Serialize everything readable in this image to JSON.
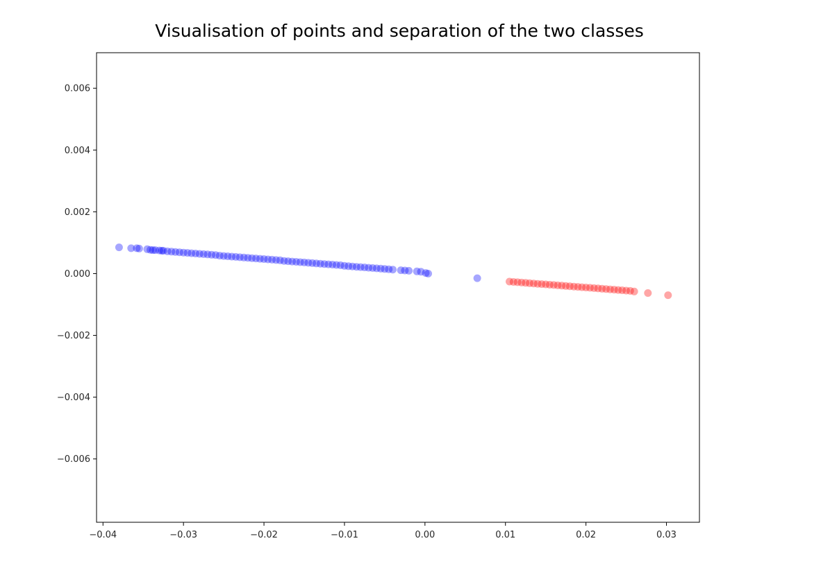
{
  "chart_data": {
    "type": "scatter",
    "title": "Visualisation of points and separation of the two classes",
    "xlabel": "",
    "ylabel": "",
    "xlim": [
      -0.0408,
      0.0341
    ],
    "ylim": [
      -0.00805,
      0.00715
    ],
    "grid": false,
    "x_ticks": [
      -0.04,
      -0.03,
      -0.02,
      -0.01,
      0.0,
      0.01,
      0.02,
      0.03
    ],
    "x_tick_labels": [
      "−0.04",
      "−0.03",
      "−0.02",
      "−0.01",
      "0.00",
      "0.01",
      "0.02",
      "0.03"
    ],
    "y_ticks": [
      0.006,
      0.004,
      0.002,
      0.0,
      -0.002,
      -0.004,
      -0.006
    ],
    "y_tick_labels": [
      "0.006",
      "0.004",
      "0.002",
      "0.000",
      "−0.002",
      "−0.004",
      "−0.006"
    ],
    "series": [
      {
        "color": "#0000ff",
        "opacity": 0.35,
        "x": [
          -0.038,
          -0.0365,
          -0.0358,
          -0.0355,
          -0.0345,
          -0.0341,
          -0.0338,
          -0.0335,
          -0.033,
          -0.0327,
          -0.0325,
          -0.032,
          -0.0315,
          -0.031,
          -0.0305,
          -0.03,
          -0.0295,
          -0.029,
          -0.0285,
          -0.028,
          -0.0275,
          -0.027,
          -0.0265,
          -0.026,
          -0.0255,
          -0.025,
          -0.0245,
          -0.024,
          -0.0235,
          -0.023,
          -0.0225,
          -0.022,
          -0.0215,
          -0.021,
          -0.0205,
          -0.02,
          -0.0195,
          -0.019,
          -0.0185,
          -0.018,
          -0.0175,
          -0.017,
          -0.0165,
          -0.016,
          -0.0155,
          -0.015,
          -0.0145,
          -0.014,
          -0.0135,
          -0.013,
          -0.0125,
          -0.012,
          -0.0115,
          -0.011,
          -0.0105,
          -0.01,
          -0.0095,
          -0.009,
          -0.0085,
          -0.008,
          -0.0075,
          -0.007,
          -0.0065,
          -0.006,
          -0.0055,
          -0.005,
          -0.0045,
          -0.004,
          -0.003,
          -0.0025,
          -0.002,
          -0.001,
          -0.0005,
          0.0001,
          0.0004,
          0.0065
        ],
        "y": [
          0.00085,
          0.00082,
          0.00082,
          0.00081,
          0.00079,
          0.00077,
          0.00076,
          0.00076,
          0.00075,
          0.00074,
          0.00074,
          0.00072,
          0.00071,
          0.0007,
          0.00069,
          0.00068,
          0.00067,
          0.00066,
          0.00065,
          0.00064,
          0.00063,
          0.00062,
          0.00061,
          0.0006,
          0.00058,
          0.00057,
          0.00056,
          0.00055,
          0.00054,
          0.00053,
          0.00052,
          0.00051,
          0.0005,
          0.00049,
          0.00048,
          0.00047,
          0.00046,
          0.00045,
          0.00044,
          0.00043,
          0.00041,
          0.0004,
          0.00039,
          0.00038,
          0.00037,
          0.00036,
          0.00035,
          0.00034,
          0.00033,
          0.00032,
          0.00031,
          0.0003,
          0.00029,
          0.00028,
          0.00027,
          0.00025,
          0.00024,
          0.00023,
          0.00022,
          0.00021,
          0.0002,
          0.00019,
          0.00018,
          0.00017,
          0.00016,
          0.00015,
          0.00014,
          0.00013,
          0.00011,
          0.0001,
          9e-05,
          7e-05,
          6e-05,
          2e-05,
          0.0,
          -0.00015
        ]
      },
      {
        "color": "#ff0000",
        "opacity": 0.35,
        "x": [
          0.0105,
          0.011,
          0.0115,
          0.012,
          0.0125,
          0.013,
          0.0135,
          0.014,
          0.0145,
          0.015,
          0.0155,
          0.016,
          0.0165,
          0.017,
          0.0175,
          0.018,
          0.0185,
          0.019,
          0.0195,
          0.02,
          0.0205,
          0.021,
          0.0215,
          0.022,
          0.0225,
          0.023,
          0.0235,
          0.024,
          0.0245,
          0.025,
          0.0255,
          0.026,
          0.0277,
          0.0302
        ],
        "y": [
          -0.00026,
          -0.00027,
          -0.00028,
          -0.00029,
          -0.0003,
          -0.00031,
          -0.00032,
          -0.00033,
          -0.00034,
          -0.00035,
          -0.00036,
          -0.00037,
          -0.00038,
          -0.00039,
          -0.0004,
          -0.00041,
          -0.00042,
          -0.00043,
          -0.00044,
          -0.00045,
          -0.00046,
          -0.00047,
          -0.00048,
          -0.00049,
          -0.0005,
          -0.00051,
          -0.00052,
          -0.00053,
          -0.00054,
          -0.00055,
          -0.00056,
          -0.00058,
          -0.00063,
          -0.0007
        ]
      }
    ]
  }
}
